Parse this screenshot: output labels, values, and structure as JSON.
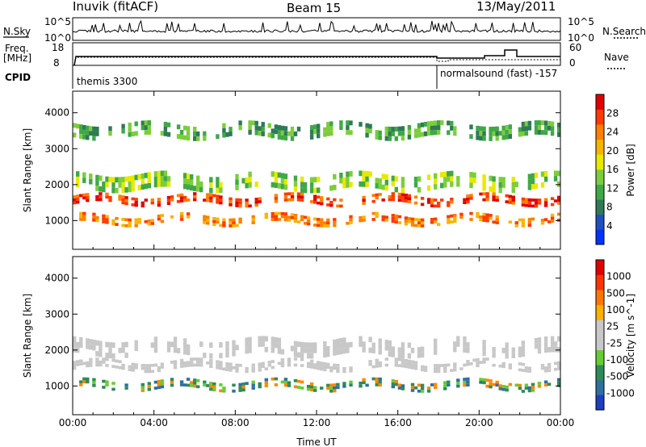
{
  "header": {
    "station": "Inuvik (fitACF)",
    "beam": "Beam 15",
    "date": "13/May/2011"
  },
  "top_panels": {
    "nsky_label": "N.Sky",
    "nsearch_label": "N.Search",
    "nsky_ticks": [
      "10^5",
      "10^0"
    ],
    "freq_label": "Freq.",
    "freq_unit": "[MHz]",
    "freq_ticks": [
      "18",
      "8"
    ],
    "nave_label": "Nave",
    "nave_ticks": [
      "60",
      "0"
    ],
    "cpid_label": "CPID",
    "cpid_entries": [
      {
        "text": "themis 3300",
        "start_hour": 0.0
      },
      {
        "text": "normalsound (fast) -157",
        "start_hour": 18.0
      }
    ]
  },
  "chart_data": [
    {
      "type": "heatmap",
      "title": "",
      "xlabel": "",
      "ylabel": "Slant Range [km]",
      "xlim_hours": [
        0,
        24
      ],
      "x_tick_labels": [
        "00:00",
        "04:00",
        "08:00",
        "12:00",
        "16:00",
        "20:00",
        "00:00"
      ],
      "ylim": [
        200,
        4600
      ],
      "y_ticks": [
        1000,
        2000,
        3000,
        4000
      ],
      "colorbar": {
        "label": "Power [dB]",
        "ticks": [
          "4",
          "8",
          "12",
          "16",
          "20",
          "24",
          "28"
        ],
        "colors": [
          "#0033ff",
          "#1f4fc0",
          "#2e7a55",
          "#3fa847",
          "#7ccd3c",
          "#e8e800",
          "#f7b500",
          "#ff7f00",
          "#ff3a00",
          "#e00000"
        ]
      },
      "bands": [
        {
          "range_km": [
            1450,
            1700
          ],
          "level": 8
        },
        {
          "range_km": [
            900,
            1150
          ],
          "level": 7
        },
        {
          "range_km": [
            1850,
            2300
          ],
          "level": 4
        },
        {
          "range_km": [
            3300,
            3700
          ],
          "level": 3
        }
      ]
    },
    {
      "type": "heatmap",
      "title": "",
      "xlabel": "Time UT",
      "ylabel": "Slant Range [km]",
      "xlim_hours": [
        0,
        24
      ],
      "x_tick_labels": [
        "00:00",
        "04:00",
        "08:00",
        "12:00",
        "16:00",
        "20:00",
        "00:00"
      ],
      "ylim": [
        200,
        4600
      ],
      "y_ticks": [
        1000,
        2000,
        3000,
        4000
      ],
      "colorbar": {
        "label": "Velocity [m s^-1]",
        "ticks": [
          "1000",
          "500",
          "100",
          "25",
          "-25",
          "-100",
          "-500",
          "-1000"
        ],
        "colors": [
          "#1a3fbf",
          "#2f6fa0",
          "#2e8b57",
          "#66cc33",
          "#c8c8c8",
          "#c8c8c8",
          "#ffb000",
          "#ff7700",
          "#ff3300",
          "#e00000"
        ]
      },
      "bands": [
        {
          "range_km": [
            1450,
            1700
          ],
          "level": "ground-scatter"
        },
        {
          "range_km": [
            900,
            1150
          ],
          "level": "positive"
        },
        {
          "range_km": [
            1850,
            2300
          ],
          "level": "ground-scatter"
        }
      ]
    }
  ]
}
